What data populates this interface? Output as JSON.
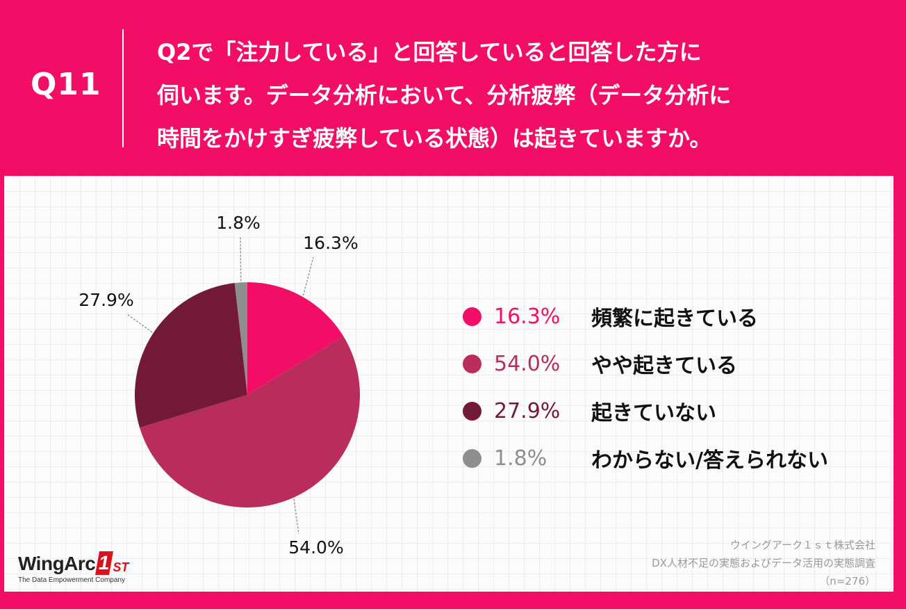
{
  "header": {
    "question_no": "Q11",
    "question_lines": [
      "Q2で「注力している」と回答していると回答した方に",
      "伺います。データ分析において、分析疲弊（データ分析に",
      "時間をかけすぎ疲弊している状態）は起きていますか。"
    ]
  },
  "chart_data": {
    "type": "pie",
    "unit": "%",
    "slices": [
      {
        "label": "頻繁に起きている",
        "value": 16.3,
        "display": "16.3%",
        "color": "#f20d66"
      },
      {
        "label": "やや起きている",
        "value": 54.0,
        "display": "54.0%",
        "color": "#b82d5a"
      },
      {
        "label": "起きていない",
        "value": 27.9,
        "display": "27.9%",
        "color": "#721a36"
      },
      {
        "label": "わからない/答えられない",
        "value": 1.8,
        "display": "1.8%",
        "color": "#8e8e8e"
      }
    ],
    "start": "12 o'clock",
    "direction": "clockwise",
    "legend_position": "right"
  },
  "logo": {
    "word": "WingArc",
    "badge": "1",
    "suffix": "ST",
    "tagline": "The Data Empowerment Company"
  },
  "source": {
    "company": "ウイングアーク１ｓｔ株式会社",
    "survey": "DX人材不足の実態およびデータ活用の実態調査",
    "sample": "（n=276）"
  }
}
